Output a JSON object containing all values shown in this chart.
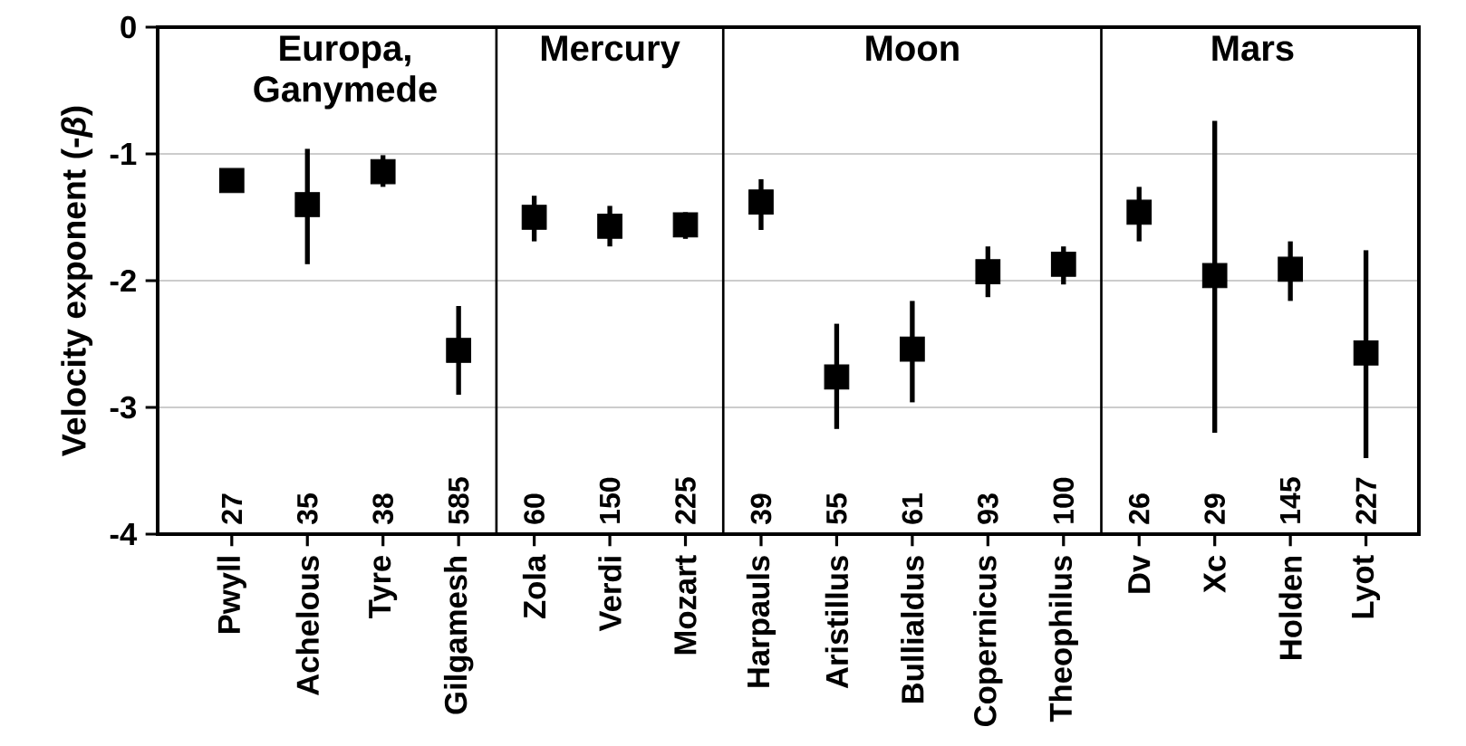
{
  "chart_data": {
    "type": "scatter",
    "ylabel": "Velocity exponent (-*β*)",
    "categories": [
      "Pwyll",
      "Achelous",
      "Tyre",
      "Gilgamesh",
      "Zola",
      "Verdi",
      "Mozart",
      "Harpauls",
      "Aristillus",
      "Bullialdus",
      "Copernicus",
      "Theophilus",
      "Dv",
      "Xc",
      "Holden",
      "Lyot"
    ],
    "values": [
      -1.21,
      -1.4,
      -1.14,
      -2.55,
      -1.5,
      -1.57,
      -1.56,
      -1.38,
      -2.76,
      -2.54,
      -1.93,
      -1.87,
      -1.46,
      -1.96,
      -1.91,
      -2.57
    ],
    "errors": [
      null,
      [
        -1.87,
        -0.96
      ],
      [
        -1.26,
        -1.01
      ],
      [
        -2.9,
        -2.2
      ],
      [
        -1.69,
        -1.33
      ],
      [
        -1.73,
        -1.41
      ],
      [
        -1.67,
        -1.46
      ],
      [
        -1.6,
        -1.2
      ],
      [
        -3.17,
        -2.34
      ],
      [
        -2.96,
        -2.16
      ],
      [
        -2.13,
        -1.73
      ],
      [
        -2.03,
        -1.73
      ],
      [
        -1.69,
        -1.26
      ],
      [
        -3.2,
        -0.74
      ],
      [
        -2.16,
        -1.69
      ],
      [
        -3.4,
        -1.76
      ]
    ],
    "color": "#000000",
    "marker": "square",
    "grid": "y",
    "ylim": [
      -4,
      0
    ],
    "yticks": [
      -4,
      -3,
      -2,
      -1,
      0
    ],
    "annotations": [
      "Europa, Ganymede",
      "Mercury",
      "Moon",
      "Mars",
      "27",
      "35",
      "38",
      "585",
      "60",
      "150",
      "225",
      "39",
      "55",
      "61",
      "93",
      "100",
      "26",
      "29",
      "145",
      "227"
    ]
  }
}
